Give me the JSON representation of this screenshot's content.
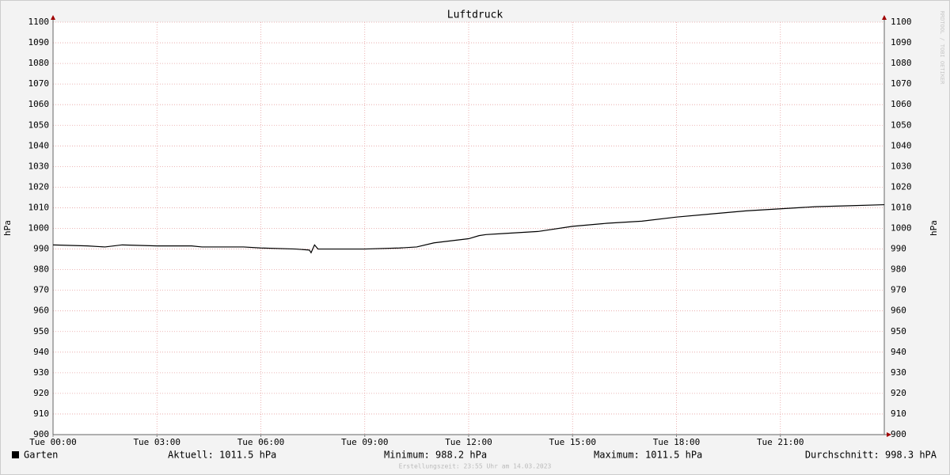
{
  "chart_data": {
    "type": "line",
    "title": "Luftdruck",
    "y_label": "hPa",
    "y2_label": "hPa",
    "watermark": "RRDTOOL / TOBI OETIKER",
    "x": [
      0,
      1,
      1.5,
      2,
      3,
      4,
      4.3,
      5.5,
      6,
      7,
      7.4,
      7.45,
      7.55,
      7.65,
      8,
      9,
      10,
      10.5,
      11,
      11.5,
      12,
      12.3,
      12.5,
      13,
      14,
      15,
      16,
      17,
      18,
      19,
      20,
      21,
      22,
      23,
      24
    ],
    "series": [
      {
        "name": "Garten",
        "color": "#000000",
        "values": [
          992,
          991.5,
          991,
          992,
          991.5,
          991.5,
          991,
          991,
          990.5,
          990,
          989.5,
          988.2,
          992,
          990,
          990,
          990,
          990.5,
          991,
          993,
          994,
          995,
          996.5,
          997,
          997.5,
          998.5,
          1001,
          1002.5,
          1003.5,
          1005.5,
          1007,
          1008.5,
          1009.5,
          1010.5,
          1011,
          1011.5
        ]
      }
    ],
    "xlim": [
      0,
      24
    ],
    "xticks": [
      {
        "value": 0,
        "label": "Tue 00:00"
      },
      {
        "value": 3,
        "label": "Tue 03:00"
      },
      {
        "value": 6,
        "label": "Tue 06:00"
      },
      {
        "value": 9,
        "label": "Tue 09:00"
      },
      {
        "value": 12,
        "label": "Tue 12:00"
      },
      {
        "value": 15,
        "label": "Tue 15:00"
      },
      {
        "value": 18,
        "label": "Tue 18:00"
      },
      {
        "value": 21,
        "label": "Tue 21:00"
      }
    ],
    "ylim": [
      900,
      1100
    ],
    "yticks": [
      900,
      910,
      920,
      930,
      940,
      950,
      960,
      970,
      980,
      990,
      1000,
      1010,
      1020,
      1030,
      1040,
      1050,
      1060,
      1070,
      1080,
      1090,
      1100
    ],
    "y2lim": [
      900,
      1100
    ],
    "grid": true,
    "legend_stats": [
      "Aktuell: 1011.5 hPa",
      "Minimum: 988.2 hPa",
      "Maximum: 1011.5 hPa",
      "Durchschnitt: 998.3 hPA"
    ],
    "footer": "Erstellungszeit: 23:55 Uhr am 14.03.2023"
  }
}
